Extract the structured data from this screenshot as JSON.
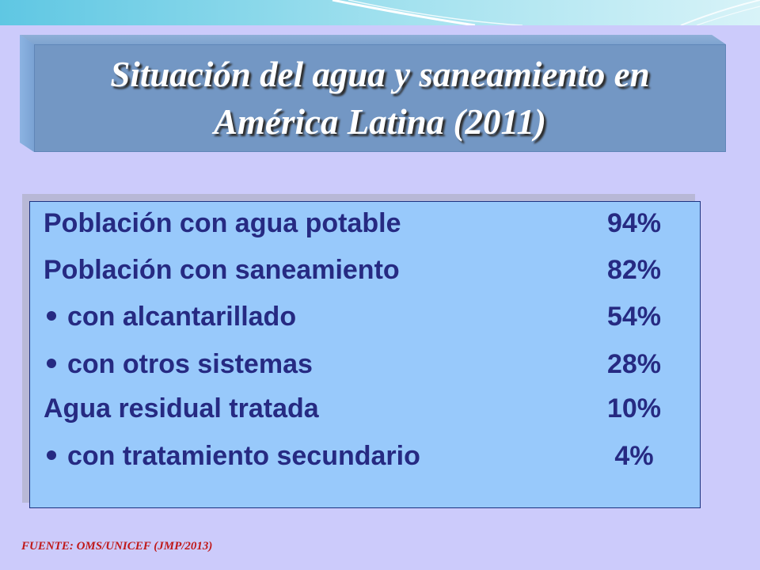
{
  "title": {
    "line1": "Situación del agua y saneamiento en",
    "line2": "América Latina (2011)"
  },
  "rows": [
    {
      "label": "Población con agua potable",
      "value": "94%",
      "bullet": false
    },
    {
      "label": "Población con saneamiento",
      "value": "82%",
      "bullet": false
    },
    {
      "label": "con alcantarillado",
      "value": "54%",
      "bullet": true
    },
    {
      "label": "con otros sistemas",
      "value": "28%",
      "bullet": true
    },
    {
      "label": "Agua residual tratada",
      "value": "10%",
      "bullet": false
    },
    {
      "label": "con tratamiento secundario",
      "value": "4%",
      "bullet": true
    }
  ],
  "source": "FUENTE: OMS/UNICEF (JMP/2013)",
  "colors": {
    "background": "#cccbfb",
    "title_box": "#7397c4",
    "data_box": "#98c9fb",
    "text": "#262a82",
    "source": "#c01818"
  }
}
